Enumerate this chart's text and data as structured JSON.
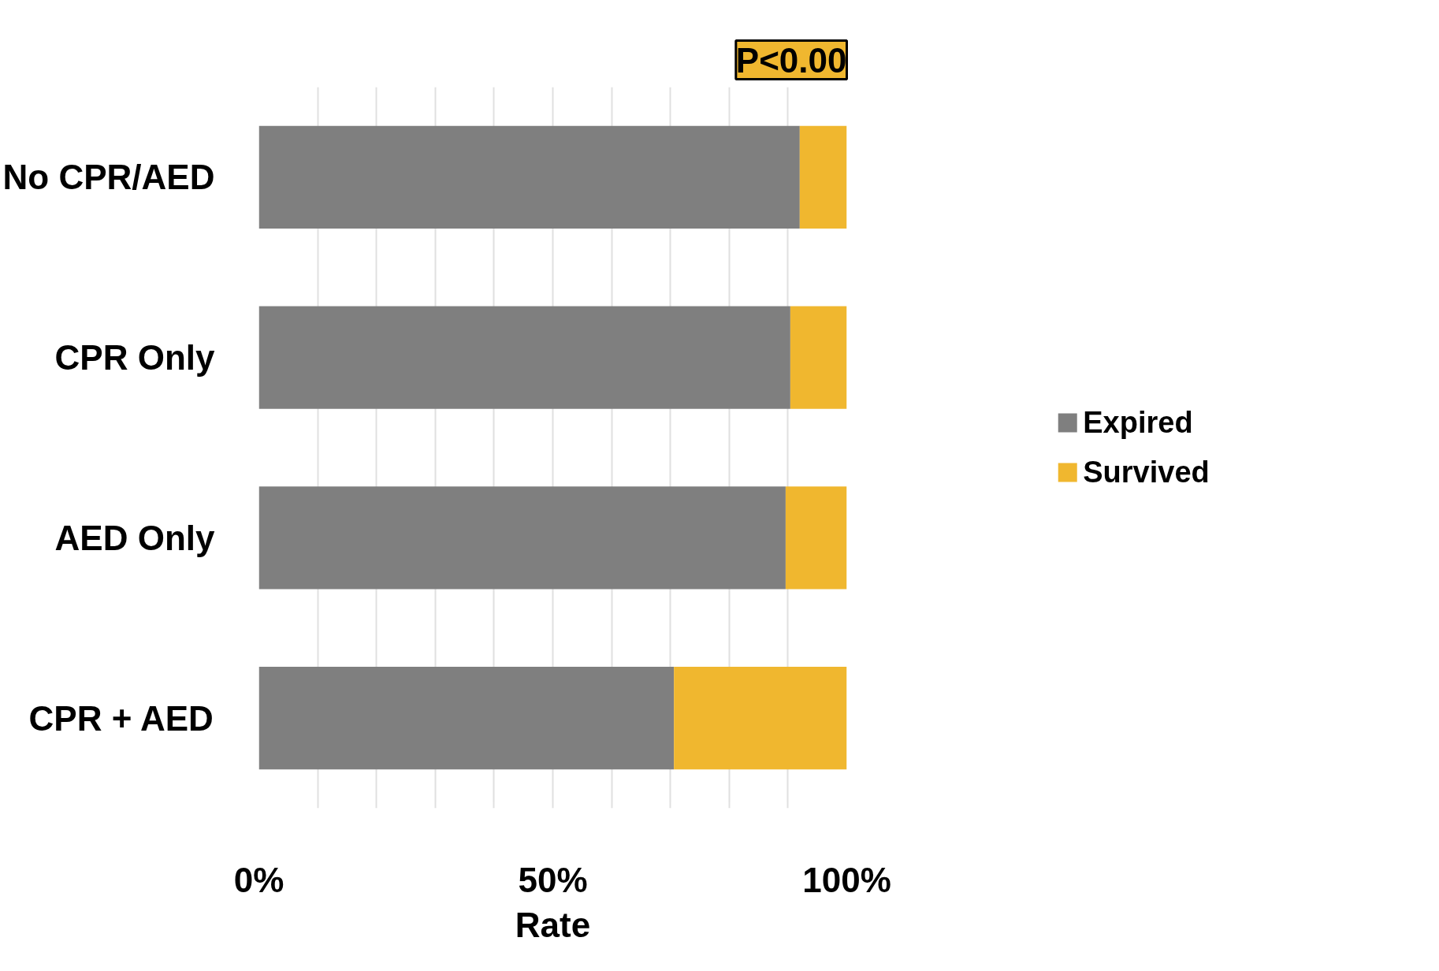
{
  "chart_data": {
    "type": "bar",
    "orientation": "horizontal",
    "stacked": true,
    "categories": [
      "No CPR/AED",
      "CPR Only",
      "AED Only",
      "CPR + AED"
    ],
    "series": [
      {
        "name": "Expired",
        "color": "#7f7f7f",
        "values": [
          92.0,
          90.4,
          89.6,
          70.6
        ]
      },
      {
        "name": "Survived",
        "color": "#f0b72f",
        "values": [
          8.0,
          9.6,
          10.4,
          29.4
        ]
      }
    ],
    "xlim": [
      0,
      100
    ],
    "xticks": [
      {
        "value": 0,
        "label": "0%"
      },
      {
        "value": 10,
        "label": null
      },
      {
        "value": 20,
        "label": null
      },
      {
        "value": 30,
        "label": null
      },
      {
        "value": 40,
        "label": null
      },
      {
        "value": 50,
        "label": "50%"
      },
      {
        "value": 60,
        "label": null
      },
      {
        "value": 70,
        "label": null
      },
      {
        "value": 80,
        "label": null
      },
      {
        "value": 90,
        "label": null
      },
      {
        "value": 100,
        "label": "100%"
      }
    ],
    "xlabel": "Rate",
    "annotations": [
      "P<0.00"
    ],
    "grid": "x",
    "legend": "right"
  }
}
